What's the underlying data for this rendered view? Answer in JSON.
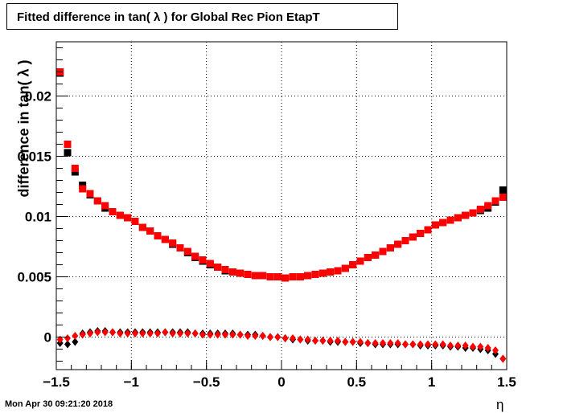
{
  "chart_data": {
    "type": "scatter",
    "title": "Fitted difference in tan( λ ) for Global Rec Pion EtapT",
    "xlabel": "η",
    "ylabel": "difference in tan( λ )",
    "xlim": [
      -1.5,
      1.5
    ],
    "ylim": [
      -0.0027,
      0.0245
    ],
    "grid": true,
    "x_ticks": [
      {
        "value": -1.5,
        "label": "−1.5"
      },
      {
        "value": -1.0,
        "label": "−1"
      },
      {
        "value": -0.5,
        "label": "−0.5"
      },
      {
        "value": 0.0,
        "label": "0"
      },
      {
        "value": 0.5,
        "label": "0.5"
      },
      {
        "value": 1.0,
        "label": "1"
      },
      {
        "value": 1.5,
        "label": "1.5"
      }
    ],
    "y_ticks": [
      {
        "value": 0.0,
        "label": "0"
      },
      {
        "value": 0.005,
        "label": "0.005"
      },
      {
        "value": 0.01,
        "label": "0.01"
      },
      {
        "value": 0.015,
        "label": "0.015"
      },
      {
        "value": 0.02,
        "label": "0.02"
      }
    ],
    "x": [
      -1.475,
      -1.425,
      -1.375,
      -1.325,
      -1.275,
      -1.225,
      -1.175,
      -1.125,
      -1.075,
      -1.025,
      -0.975,
      -0.925,
      -0.875,
      -0.825,
      -0.775,
      -0.725,
      -0.675,
      -0.625,
      -0.575,
      -0.525,
      -0.475,
      -0.425,
      -0.375,
      -0.325,
      -0.275,
      -0.225,
      -0.175,
      -0.125,
      -0.075,
      -0.025,
      0.025,
      0.075,
      0.125,
      0.175,
      0.225,
      0.275,
      0.325,
      0.375,
      0.425,
      0.475,
      0.525,
      0.575,
      0.625,
      0.675,
      0.725,
      0.775,
      0.825,
      0.875,
      0.925,
      0.975,
      1.025,
      1.075,
      1.125,
      1.175,
      1.225,
      1.275,
      1.325,
      1.375,
      1.425,
      1.475
    ],
    "series": [
      {
        "marker": "square",
        "color": "#000000",
        "values": [
          0.0219,
          0.0153,
          0.0137,
          0.0126,
          0.0118,
          0.0113,
          0.0107,
          0.0104,
          0.0101,
          0.0099,
          0.0096,
          0.0091,
          0.0088,
          0.0084,
          0.0081,
          0.0077,
          0.0074,
          0.007,
          0.0066,
          0.0063,
          0.006,
          0.0058,
          0.0055,
          0.0054,
          0.0053,
          0.0052,
          0.0051,
          0.0051,
          0.005,
          0.005,
          0.0049,
          0.005,
          0.005,
          0.0051,
          0.0052,
          0.0053,
          0.0054,
          0.0055,
          0.0057,
          0.006,
          0.0063,
          0.0066,
          0.0068,
          0.0071,
          0.0074,
          0.0077,
          0.008,
          0.0083,
          0.0086,
          0.0089,
          0.0093,
          0.0095,
          0.0097,
          0.0099,
          0.0101,
          0.0103,
          0.0105,
          0.0107,
          0.0112,
          0.0122
        ]
      },
      {
        "marker": "square",
        "color": "#ff0000",
        "values": [
          0.022,
          0.016,
          0.014,
          0.0123,
          0.0119,
          0.0113,
          0.0109,
          0.0104,
          0.0101,
          0.0099,
          0.0096,
          0.0091,
          0.0088,
          0.0084,
          0.0081,
          0.0078,
          0.0074,
          0.0071,
          0.0067,
          0.0064,
          0.0061,
          0.0058,
          0.0056,
          0.0054,
          0.0053,
          0.0052,
          0.0051,
          0.0051,
          0.005,
          0.005,
          0.0049,
          0.005,
          0.005,
          0.0051,
          0.0052,
          0.0053,
          0.0054,
          0.0055,
          0.0057,
          0.006,
          0.0063,
          0.0066,
          0.0068,
          0.0071,
          0.0074,
          0.0077,
          0.008,
          0.0083,
          0.0086,
          0.0089,
          0.0093,
          0.0095,
          0.0097,
          0.0099,
          0.0101,
          0.0103,
          0.0106,
          0.0109,
          0.0113,
          0.0116
        ]
      },
      {
        "marker": "diamond",
        "color": "#000000",
        "values": [
          -0.0005,
          -0.0006,
          -0.0004,
          0.0003,
          0.0004,
          0.0005,
          0.0005,
          0.0004,
          0.0004,
          0.0004,
          0.0004,
          0.0004,
          0.0004,
          0.0004,
          0.0004,
          0.0004,
          0.0004,
          0.0004,
          0.0003,
          0.0003,
          0.0003,
          0.0003,
          0.0003,
          0.0003,
          0.0002,
          0.0002,
          0.0002,
          0.0001,
          0.0,
          0.0,
          -0.0001,
          -0.0002,
          -0.0002,
          -0.0003,
          -0.0003,
          -0.0003,
          -0.0004,
          -0.0004,
          -0.0004,
          -0.0004,
          -0.0005,
          -0.0005,
          -0.0006,
          -0.0006,
          -0.0006,
          -0.0006,
          -0.0006,
          -0.0006,
          -0.0007,
          -0.0007,
          -0.0007,
          -0.0007,
          -0.0008,
          -0.0008,
          -0.0009,
          -0.0009,
          -0.001,
          -0.0011,
          -0.0014,
          -0.0018
        ]
      },
      {
        "marker": "diamond",
        "color": "#ff0000",
        "values": [
          -0.0002,
          -0.0001,
          0.0001,
          0.0002,
          0.0003,
          0.0004,
          0.0004,
          0.0004,
          0.0003,
          0.0003,
          0.0003,
          0.0003,
          0.0003,
          0.0003,
          0.0004,
          0.0003,
          0.0003,
          0.0003,
          0.0003,
          0.0002,
          0.0002,
          0.0002,
          0.0002,
          0.0002,
          0.0002,
          0.0001,
          0.0001,
          0.0001,
          0.0,
          0.0,
          -0.0001,
          -0.0001,
          -0.0002,
          -0.0002,
          -0.0003,
          -0.0003,
          -0.0003,
          -0.0003,
          -0.0004,
          -0.0004,
          -0.0004,
          -0.0005,
          -0.0005,
          -0.0005,
          -0.0005,
          -0.0005,
          -0.0006,
          -0.0006,
          -0.0006,
          -0.0006,
          -0.0006,
          -0.0006,
          -0.0007,
          -0.0007,
          -0.0007,
          -0.0008,
          -0.0008,
          -0.0009,
          -0.0011,
          -0.0018
        ]
      }
    ]
  },
  "timestamp": "Mon Apr 30 09:21:20 2018"
}
